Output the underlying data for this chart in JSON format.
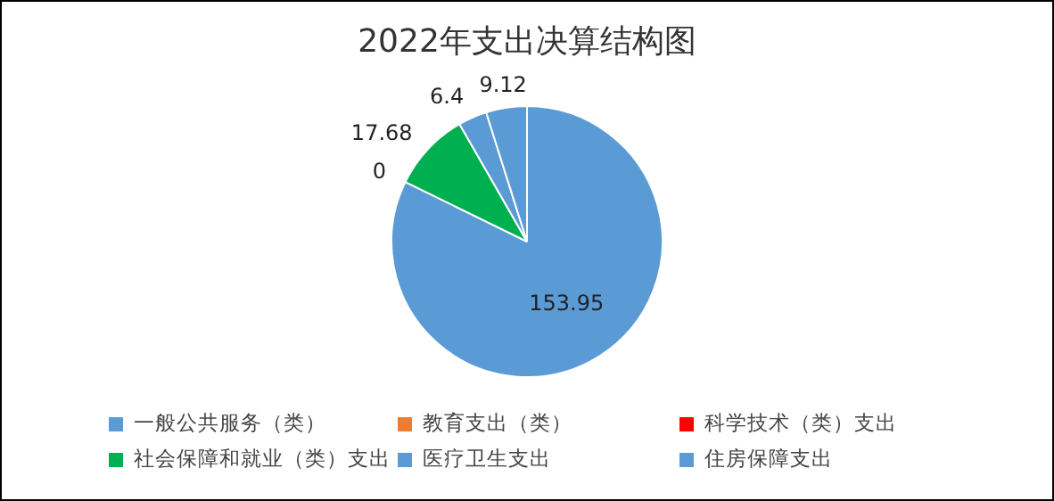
{
  "chart_data": {
    "type": "pie",
    "title": "2022年支出决算结构图",
    "categories": [
      "一般公共服务（类）",
      "教育支出（类）",
      "科学技术（类）支出",
      "社会保障和就业（类）支出",
      "医疗卫生支出",
      "住房保障支出"
    ],
    "values": [
      153.95,
      0,
      0,
      17.68,
      6.4,
      9.12
    ],
    "colors": [
      "#5b9bd5",
      "#ed7d31",
      "#ff0000",
      "#00b050",
      "#5b9bd5",
      "#5b9bd5"
    ],
    "value_labels": [
      "153.95",
      "0",
      null,
      "17.68",
      "6.4",
      "9.12"
    ],
    "legend": "bottom"
  }
}
